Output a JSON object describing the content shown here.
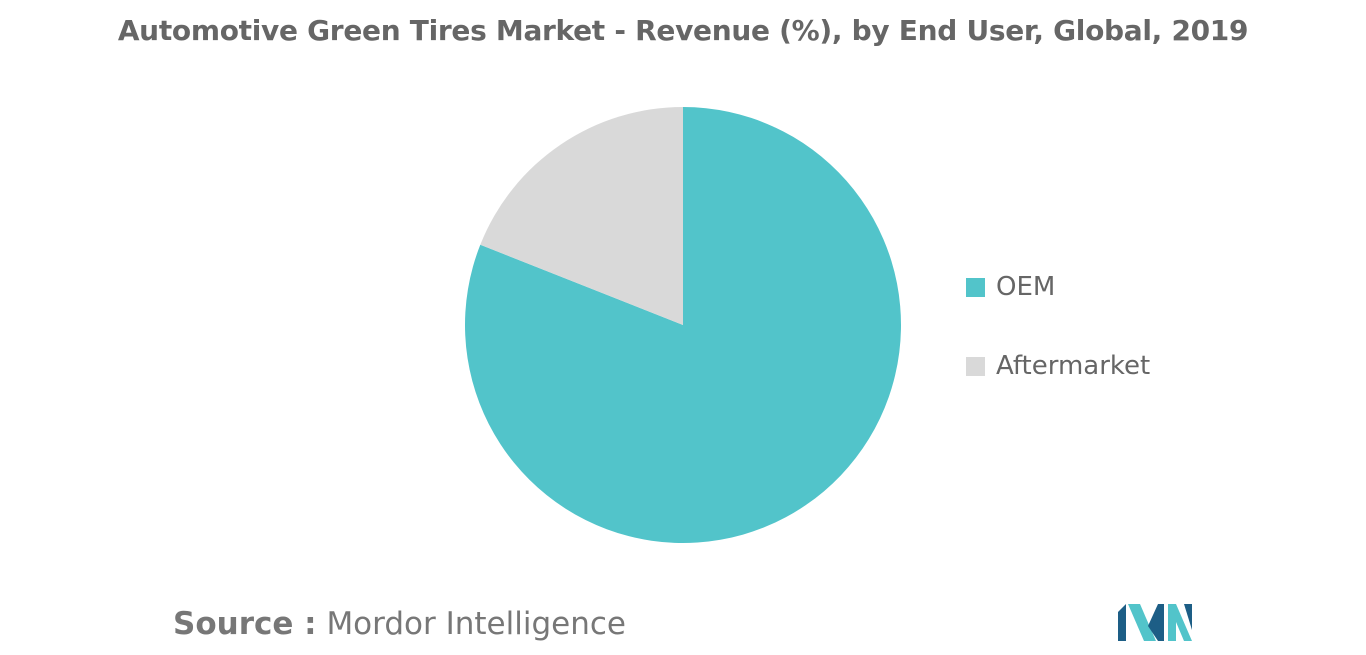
{
  "title": "Automotive Green Tires Market - Revenue (%), by End User, Global, 2019",
  "chart_data": {
    "type": "pie",
    "title": "Automotive Green Tires Market - Revenue (%), by End User, Global, 2019",
    "categories": [
      "OEM",
      "Aftermarket"
    ],
    "values": [
      81,
      19
    ],
    "colors": [
      "#52c4ca",
      "#d9d9d9"
    ],
    "start_angle_deg": 0,
    "direction": "clockwise",
    "legend_position": "right"
  },
  "legend": {
    "items": [
      {
        "label": "OEM",
        "color": "#52c4ca"
      },
      {
        "label": "Aftermarket",
        "color": "#d9d9d9"
      }
    ]
  },
  "source": {
    "label": "Source :",
    "text": "Mordor Intelligence"
  },
  "logo": {
    "name": "mordor-intelligence-logo",
    "colors": [
      "#1d5e86",
      "#52c4ca"
    ]
  }
}
